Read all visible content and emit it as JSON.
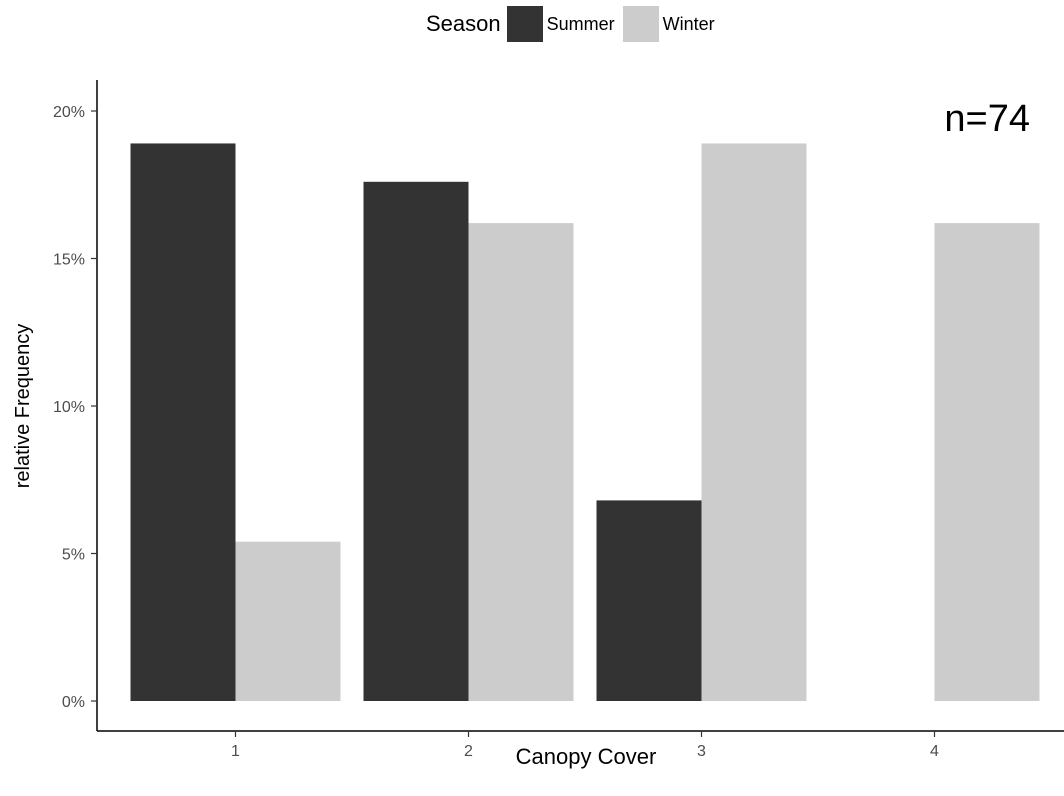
{
  "chart_data": {
    "type": "bar",
    "title": "",
    "xlabel": "Canopy Cover",
    "ylabel": "relative Frequency",
    "categories": [
      "1",
      "2",
      "3",
      "4"
    ],
    "ylim": [
      0,
      0.2
    ],
    "yticks": [
      0,
      0.05,
      0.1,
      0.15,
      0.2
    ],
    "ytick_labels": [
      "0%",
      "5%",
      "10%",
      "15%",
      "20%"
    ],
    "series": [
      {
        "name": "Summer",
        "color": "#333333",
        "values": [
          0.189,
          0.176,
          0.068,
          0
        ]
      },
      {
        "name": "Winter",
        "color": "#cccccc",
        "values": [
          0.054,
          0.162,
          0.189,
          0.162
        ]
      }
    ],
    "legend_title": "Season",
    "legend_position": "top",
    "annotation": "n=74",
    "grid": false
  }
}
